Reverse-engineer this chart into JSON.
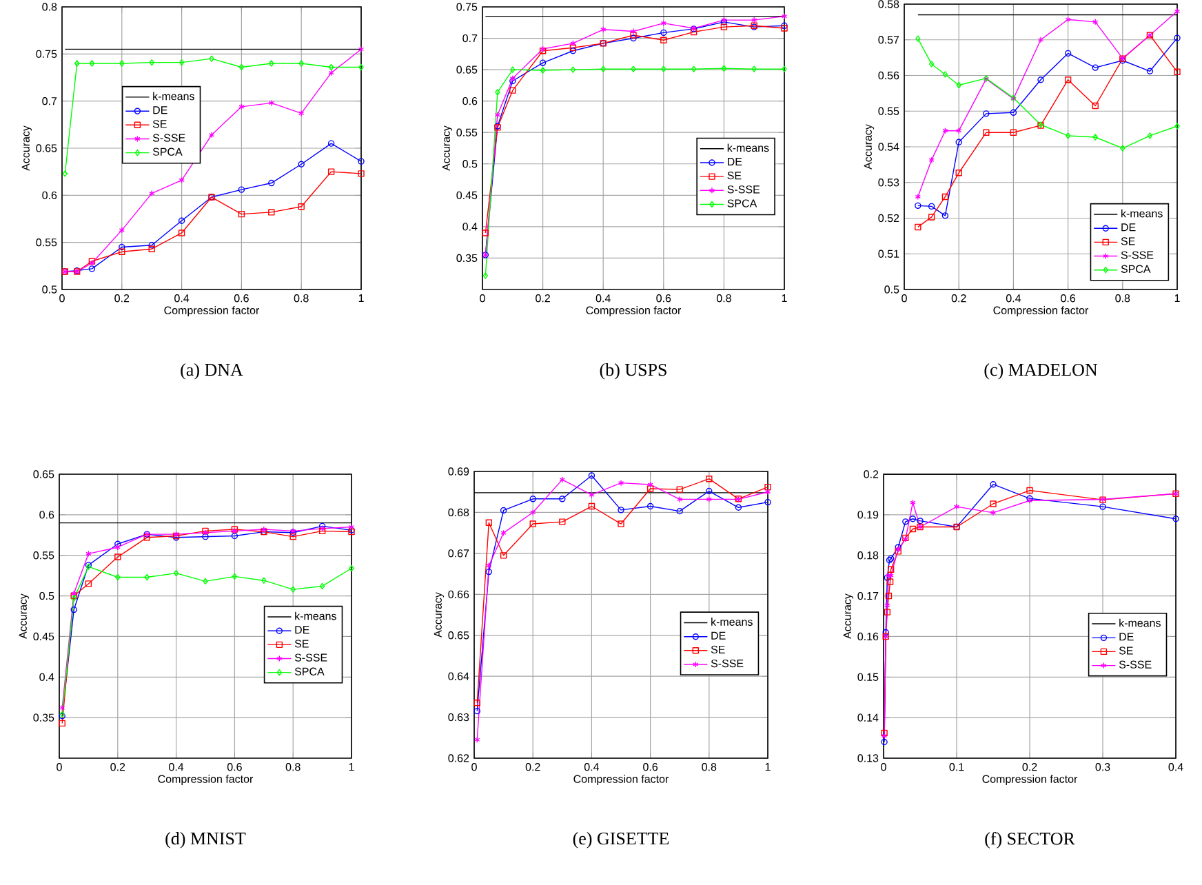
{
  "chart_data": [
    {
      "type": "line",
      "title": "(a) DNA",
      "xlabel": "Compression factor",
      "ylabel": "Accuracy",
      "xlim": [
        0,
        1
      ],
      "ylim": [
        0.5,
        0.8
      ],
      "xticks": [
        0,
        0.2,
        0.4,
        0.6,
        0.8,
        1
      ],
      "yticks": [
        0.5,
        0.55,
        0.6,
        0.65,
        0.7,
        0.75,
        0.8
      ],
      "grid": true,
      "legend": "top left",
      "x": [
        0.01,
        0.05,
        0.1,
        0.2,
        0.3,
        0.4,
        0.5,
        0.6,
        0.7,
        0.8,
        0.9,
        1
      ],
      "series": [
        {
          "name": "k-means",
          "color": "#000000",
          "marker": "none",
          "x": [
            0.01,
            1
          ],
          "values": [
            0.755,
            0.755
          ]
        },
        {
          "name": "DE",
          "color": "#0000ff",
          "marker": "circle",
          "values": [
            0.519,
            0.52,
            0.522,
            0.545,
            0.547,
            0.573,
            0.598,
            0.606,
            0.613,
            0.633,
            0.655,
            0.636
          ]
        },
        {
          "name": "SE",
          "color": "#ff0000",
          "marker": "square",
          "values": [
            0.519,
            0.519,
            0.53,
            0.54,
            0.543,
            0.56,
            0.598,
            0.58,
            0.582,
            0.588,
            0.625,
            0.623
          ]
        },
        {
          "name": "S-SSE",
          "color": "#ff00ff",
          "marker": "cross",
          "values": [
            0.519,
            0.519,
            0.528,
            0.563,
            0.602,
            0.616,
            0.664,
            0.694,
            0.698,
            0.687,
            0.73,
            0.755
          ]
        },
        {
          "name": "SPCA",
          "color": "#00ff00",
          "marker": "diamond",
          "values": [
            0.623,
            0.74,
            0.74,
            0.74,
            0.741,
            0.741,
            0.745,
            0.736,
            0.74,
            0.74,
            0.736,
            0.736
          ]
        }
      ]
    },
    {
      "type": "line",
      "title": "(b) USPS",
      "xlabel": "Compression factor",
      "ylabel": "Accuracy",
      "xlim": [
        0,
        1
      ],
      "ylim": [
        0.3,
        0.75
      ],
      "xticks": [
        0,
        0.2,
        0.4,
        0.6,
        0.8,
        1
      ],
      "yticks": [
        0.35,
        0.4,
        0.45,
        0.5,
        0.55,
        0.6,
        0.65,
        0.7,
        0.75
      ],
      "grid": true,
      "legend": "right",
      "x": [
        0.01,
        0.05,
        0.1,
        0.2,
        0.3,
        0.4,
        0.5,
        0.6,
        0.7,
        0.8,
        0.9,
        1
      ],
      "series": [
        {
          "name": "k-means",
          "color": "#000000",
          "marker": "none",
          "x": [
            0.01,
            1
          ],
          "values": [
            0.735,
            0.735
          ]
        },
        {
          "name": "DE",
          "color": "#0000ff",
          "marker": "circle",
          "values": [
            0.355,
            0.56,
            0.632,
            0.661,
            0.68,
            0.692,
            0.7,
            0.709,
            0.715,
            0.726,
            0.718,
            0.72
          ]
        },
        {
          "name": "SE",
          "color": "#ff0000",
          "marker": "square",
          "values": [
            0.39,
            0.558,
            0.617,
            0.68,
            0.685,
            0.692,
            0.705,
            0.697,
            0.71,
            0.718,
            0.72,
            0.716
          ]
        },
        {
          "name": "S-SSE",
          "color": "#ff00ff",
          "marker": "cross",
          "values": [
            0.355,
            0.578,
            0.636,
            0.683,
            0.692,
            0.714,
            0.711,
            0.724,
            0.716,
            0.729,
            0.729,
            0.735
          ]
        },
        {
          "name": "SPCA",
          "color": "#00ff00",
          "marker": "diamond",
          "values": [
            0.322,
            0.614,
            0.65,
            0.649,
            0.65,
            0.651,
            0.651,
            0.651,
            0.651,
            0.652,
            0.651,
            0.651
          ]
        }
      ]
    },
    {
      "type": "line",
      "title": "(c) MADELON",
      "xlabel": "Compression factor",
      "ylabel": "Accuracy",
      "xlim": [
        0,
        1
      ],
      "ylim": [
        0.5,
        0.58
      ],
      "xticks": [
        0,
        0.2,
        0.4,
        0.6,
        0.8,
        1
      ],
      "yticks": [
        0.5,
        0.51,
        0.52,
        0.53,
        0.54,
        0.55,
        0.56,
        0.57,
        0.58
      ],
      "grid": true,
      "legend": "bottom right",
      "x": [
        0.05,
        0.1,
        0.15,
        0.2,
        0.3,
        0.4,
        0.5,
        0.6,
        0.7,
        0.8,
        0.9,
        1
      ],
      "series": [
        {
          "name": "k-means",
          "color": "#000000",
          "marker": "none",
          "x": [
            0.05,
            1
          ],
          "values": [
            0.577,
            0.577
          ]
        },
        {
          "name": "DE",
          "color": "#0000ff",
          "marker": "circle",
          "values": [
            0.5235,
            0.5233,
            0.5207,
            0.5413,
            0.5493,
            0.5496,
            0.5588,
            0.5662,
            0.5622,
            0.5642,
            0.5612,
            0.5705
          ]
        },
        {
          "name": "SE",
          "color": "#ff0000",
          "marker": "square",
          "values": [
            0.5175,
            0.5203,
            0.526,
            0.5327,
            0.544,
            0.544,
            0.546,
            0.5588,
            0.5515,
            0.5647,
            0.5713,
            0.561
          ]
        },
        {
          "name": "S-SSE",
          "color": "#ff00ff",
          "marker": "cross",
          "values": [
            0.526,
            0.5363,
            0.5445,
            0.5445,
            0.559,
            0.5535,
            0.57,
            0.5757,
            0.575,
            0.5648,
            0.5713,
            0.578
          ]
        },
        {
          "name": "SPCA",
          "color": "#00ff00",
          "marker": "diamond",
          "values": [
            0.5703,
            0.5632,
            0.5603,
            0.5573,
            0.5592,
            0.5537,
            0.5462,
            0.5431,
            0.5427,
            0.5396,
            0.5431,
            0.5458
          ]
        }
      ]
    },
    {
      "type": "line",
      "title": "(d) MNIST",
      "xlabel": "Compression factor",
      "ylabel": "Accuracy",
      "xlim": [
        0,
        1
      ],
      "ylim": [
        0.3,
        0.65
      ],
      "xticks": [
        0,
        0.2,
        0.4,
        0.6,
        0.8,
        1
      ],
      "yticks": [
        0.35,
        0.4,
        0.45,
        0.5,
        0.55,
        0.6,
        0.65
      ],
      "grid": true,
      "legend": "right",
      "x": [
        0.01,
        0.05,
        0.1,
        0.2,
        0.3,
        0.4,
        0.5,
        0.6,
        0.7,
        0.8,
        0.9,
        1
      ],
      "series": [
        {
          "name": "k-means",
          "color": "#000000",
          "marker": "none",
          "x": [
            0,
            1
          ],
          "values": [
            0.59,
            0.59
          ]
        },
        {
          "name": "DE",
          "color": "#0000ff",
          "marker": "circle",
          "values": [
            0.352,
            0.483,
            0.538,
            0.564,
            0.576,
            0.572,
            0.573,
            0.574,
            0.579,
            0.578,
            0.586,
            0.581
          ]
        },
        {
          "name": "SE",
          "color": "#ff0000",
          "marker": "square",
          "values": [
            0.343,
            0.5,
            0.515,
            0.548,
            0.572,
            0.574,
            0.58,
            0.582,
            0.579,
            0.573,
            0.58,
            0.579
          ]
        },
        {
          "name": "S-SSE",
          "color": "#ff00ff",
          "marker": "cross",
          "values": [
            0.362,
            0.503,
            0.552,
            0.56,
            0.576,
            0.576,
            0.578,
            0.58,
            0.582,
            0.58,
            0.583,
            0.585
          ]
        },
        {
          "name": "SPCA",
          "color": "#00ff00",
          "marker": "diamond",
          "values": [
            0.354,
            0.497,
            0.536,
            0.523,
            0.523,
            0.528,
            0.518,
            0.524,
            0.519,
            0.508,
            0.512,
            0.534
          ]
        }
      ]
    },
    {
      "type": "line",
      "title": "(e) GISETTE",
      "xlabel": "Compression factor",
      "ylabel": "Accuracy",
      "xlim": [
        0,
        1
      ],
      "ylim": [
        0.62,
        0.69
      ],
      "xticks": [
        0,
        0.2,
        0.4,
        0.6,
        0.8,
        1
      ],
      "yticks": [
        0.62,
        0.63,
        0.64,
        0.65,
        0.66,
        0.67,
        0.68,
        0.69
      ],
      "grid": true,
      "legend": "right",
      "x": [
        0.01,
        0.05,
        0.1,
        0.2,
        0.3,
        0.4,
        0.5,
        0.6,
        0.7,
        0.8,
        0.9,
        1
      ],
      "series": [
        {
          "name": "k-means",
          "color": "#000000",
          "marker": "none",
          "x": [
            0,
            1
          ],
          "values": [
            0.6848,
            0.6848
          ]
        },
        {
          "name": "DE",
          "color": "#0000ff",
          "marker": "circle",
          "values": [
            0.6315,
            0.6655,
            0.6805,
            0.6833,
            0.6833,
            0.689,
            0.6806,
            0.6815,
            0.6803,
            0.6852,
            0.6812,
            0.6825
          ]
        },
        {
          "name": "SE",
          "color": "#ff0000",
          "marker": "square",
          "values": [
            0.6335,
            0.6775,
            0.6695,
            0.6772,
            0.6777,
            0.6815,
            0.6772,
            0.6858,
            0.6856,
            0.6882,
            0.6833,
            0.6862
          ]
        },
        {
          "name": "S-SSE",
          "color": "#ff00ff",
          "marker": "cross",
          "values": [
            0.6245,
            0.667,
            0.675,
            0.68,
            0.688,
            0.6843,
            0.6872,
            0.6868,
            0.6832,
            0.6832,
            0.6832,
            0.685
          ]
        }
      ]
    },
    {
      "type": "line",
      "title": "(f) SECTOR",
      "xlabel": "Compression factor",
      "ylabel": "Accuracy",
      "xlim": [
        0,
        0.4
      ],
      "ylim": [
        0.13,
        0.2
      ],
      "xticks": [
        0,
        0.1,
        0.2,
        0.3,
        0.4
      ],
      "yticks": [
        0.13,
        0.14,
        0.15,
        0.16,
        0.17,
        0.18,
        0.19,
        0.2
      ],
      "grid": true,
      "legend": "right",
      "series": [
        {
          "name": "k-means",
          "color": "#000000",
          "marker": "none",
          "x": [
            0.001,
            0.4
          ],
          "values": [
            0.2,
            0.2
          ]
        },
        {
          "name": "DE",
          "color": "#0000ff",
          "marker": "circle",
          "x": [
            0.001,
            0.003,
            0.005,
            0.008,
            0.01,
            0.02,
            0.03,
            0.04,
            0.05,
            0.1,
            0.15,
            0.2,
            0.3,
            0.4
          ],
          "values": [
            0.134,
            0.161,
            0.1745,
            0.1788,
            0.1792,
            0.182,
            0.1883,
            0.189,
            0.1885,
            0.187,
            0.1975,
            0.194,
            0.192,
            0.189
          ]
        },
        {
          "name": "SE",
          "color": "#ff0000",
          "marker": "square",
          "x": [
            0.001,
            0.003,
            0.005,
            0.007,
            0.009,
            0.01,
            0.02,
            0.03,
            0.04,
            0.05,
            0.1,
            0.15,
            0.2,
            0.3,
            0.4
          ],
          "values": [
            0.1362,
            0.16,
            0.166,
            0.17,
            0.1735,
            0.1765,
            0.181,
            0.1843,
            0.1865,
            0.187,
            0.187,
            0.1927,
            0.196,
            0.1937,
            0.1952
          ]
        },
        {
          "name": "S-SSE",
          "color": "#ff00ff",
          "marker": "cross",
          "x": [
            0.001,
            0.003,
            0.005,
            0.007,
            0.01,
            0.02,
            0.03,
            0.04,
            0.05,
            0.1,
            0.15,
            0.2,
            0.3,
            0.4
          ],
          "values": [
            0.1355,
            0.16,
            0.1677,
            0.175,
            0.175,
            0.1815,
            0.184,
            0.193,
            0.187,
            0.192,
            0.1905,
            0.1935,
            0.1938,
            0.1952
          ]
        }
      ]
    }
  ]
}
